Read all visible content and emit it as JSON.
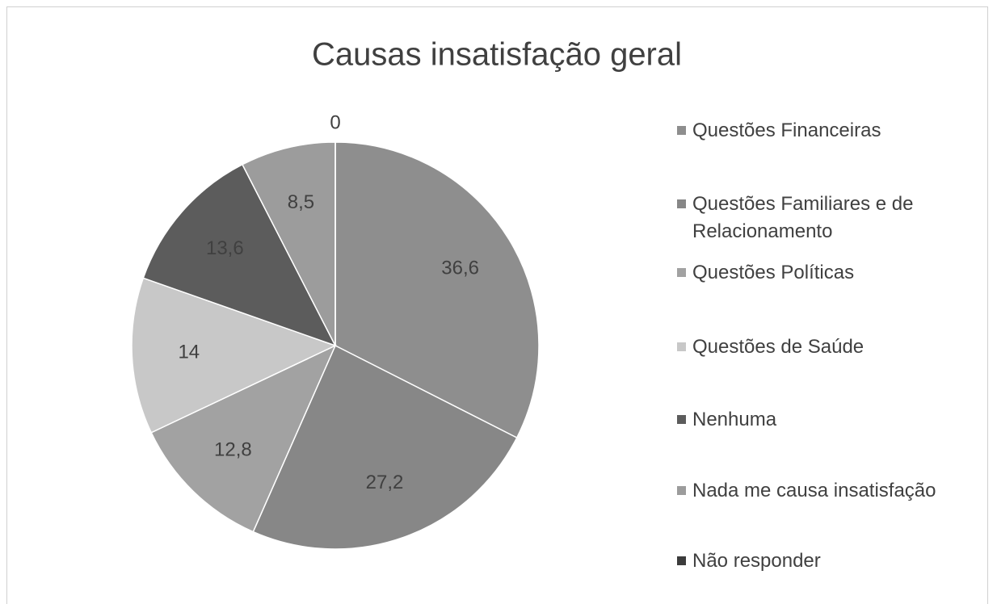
{
  "chart_data": {
    "type": "pie",
    "title": "Causas insatisfação geral",
    "categories": [
      "Questões Financeiras",
      "Questões Familiares e de Relacionamento",
      "Questões Políticas",
      "Questões de Saúde",
      "Nenhuma",
      "Nada me causa insatisfação",
      "Não responder"
    ],
    "values": [
      36.6,
      27.2,
      12.8,
      14,
      13.6,
      8.5,
      0
    ],
    "value_labels": [
      "36,6",
      "27,2",
      "12,8",
      "14",
      "13,6",
      "8,5",
      "0"
    ],
    "colors": [
      "#8e8e8e",
      "#878787",
      "#a2a2a2",
      "#c8c8c8",
      "#5c5c5c",
      "#9c9c9c",
      "#3c3c3c"
    ],
    "legend": "right"
  }
}
